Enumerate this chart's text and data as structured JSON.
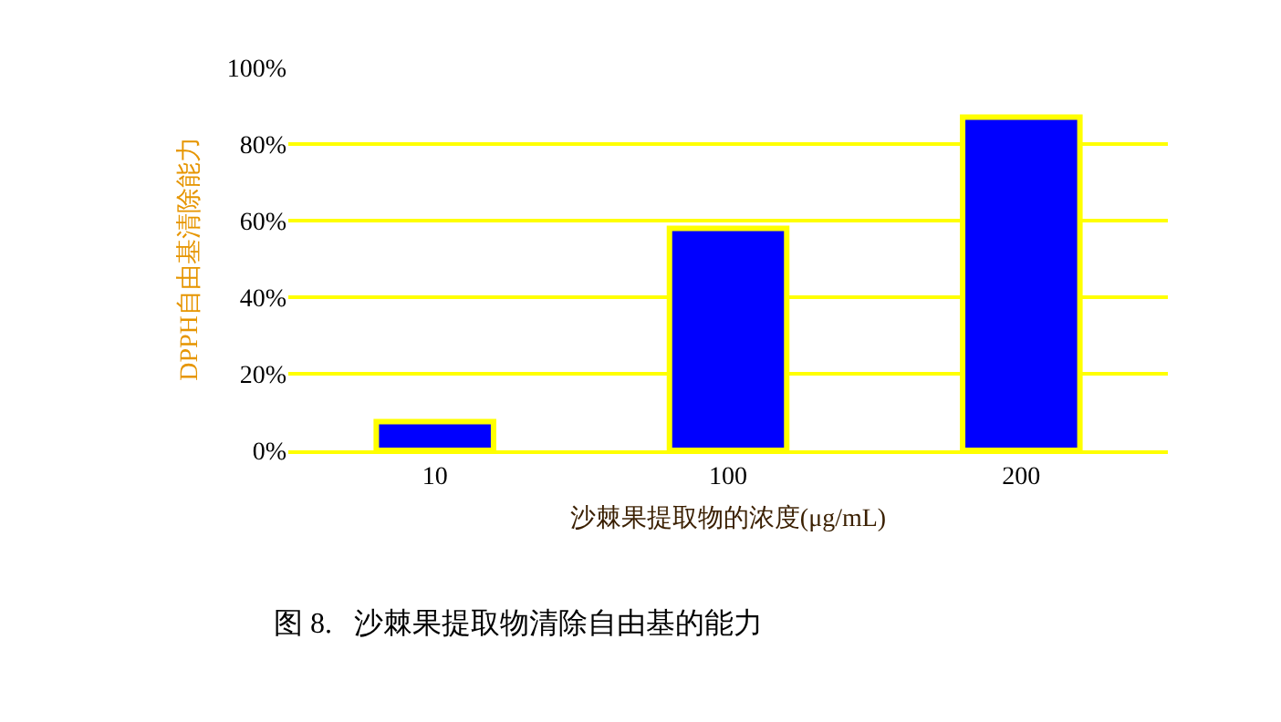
{
  "chart_data": {
    "type": "bar",
    "categories": [
      "10",
      "100",
      "200"
    ],
    "values": [
      7.5,
      58,
      87
    ],
    "color": "#0000ff",
    "xlabel": "沙棘果提取物的浓度(μg/mL)",
    "ylabel": "DPPH自由基清除能力",
    "ylim": [
      0,
      100
    ],
    "yticks": [
      {
        "value": 0,
        "label": "0%"
      },
      {
        "value": 20,
        "label": "20%"
      },
      {
        "value": 40,
        "label": "40%"
      },
      {
        "value": 60,
        "label": "60%"
      },
      {
        "value": 80,
        "label": "80%"
      },
      {
        "value": 100,
        "label": "100%"
      }
    ],
    "grid": "y",
    "legend": false,
    "annotations": [
      "图 8.   沙棘果提取物清除自由基的能力"
    ]
  }
}
